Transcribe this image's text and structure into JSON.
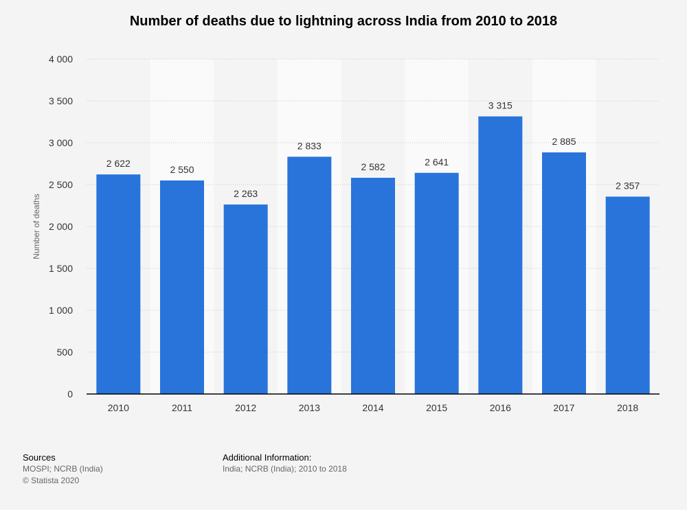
{
  "chart_data": {
    "type": "bar",
    "title": "Number of deaths due to lightning across India from 2010 to 2018",
    "xlabel": "",
    "ylabel": "Number of deaths",
    "categories": [
      "2010",
      "2011",
      "2012",
      "2013",
      "2014",
      "2015",
      "2016",
      "2017",
      "2018"
    ],
    "values": [
      2622,
      2550,
      2263,
      2833,
      2582,
      2641,
      3315,
      2885,
      2357
    ],
    "value_labels": [
      "2 622",
      "2 550",
      "2 263",
      "2 833",
      "2 582",
      "2 641",
      "3 315",
      "2 885",
      "2 357"
    ],
    "ylim": [
      0,
      4000
    ],
    "yticks": [
      0,
      500,
      1000,
      1500,
      2000,
      2500,
      3000,
      3500,
      4000
    ],
    "ytick_labels": [
      "0",
      "500",
      "1 000",
      "1 500",
      "2 000",
      "2 500",
      "3 000",
      "3 500",
      "4 000"
    ],
    "grid": true,
    "legend": "none",
    "colors": {
      "bar": "#2874db",
      "background": "#f4f4f4",
      "band": "#fafafa",
      "grid": "#c8c8c8",
      "axis": "#000000"
    }
  },
  "footer": {
    "sources_heading": "Sources",
    "sources_line1": "MOSPI; NCRB (India)",
    "sources_line2": "© Statista 2020",
    "additional_heading": "Additional Information:",
    "additional_line1": "India; NCRB (India); 2010 to 2018"
  }
}
